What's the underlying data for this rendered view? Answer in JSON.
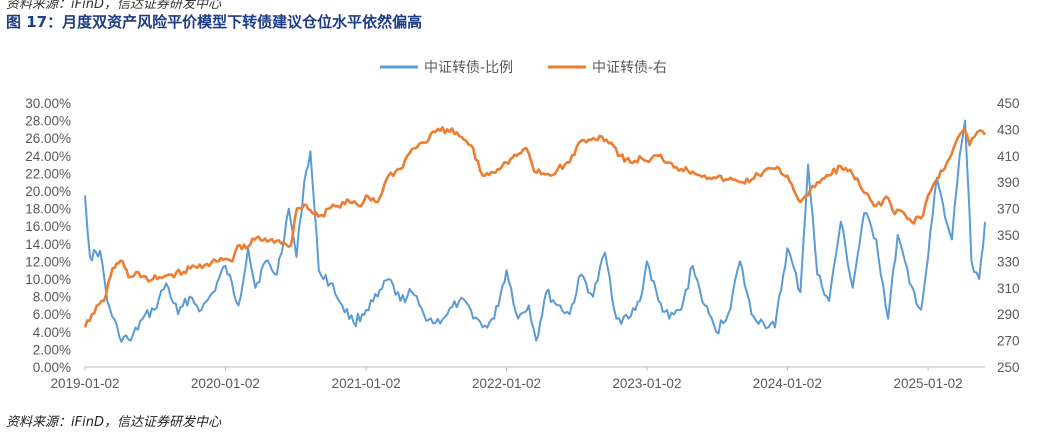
{
  "header": {
    "top_source": "资料来源：iFinD，信达证券研发中心",
    "title": "图 17：月度双资产风险平价模型下转债建议仓位水平依然偏高"
  },
  "footer": {
    "source": "资料来源：iFinD，信达证券研发中心"
  },
  "colors": {
    "ratio": "#5b9bd5",
    "index": "#ed7d31",
    "axis": "#bfbfbf",
    "text": "#595959"
  },
  "chart_data": {
    "type": "line",
    "title": "",
    "legend_position": "top-center",
    "grid": false,
    "x_ticks": [
      "2019-01-02",
      "2020-01-02",
      "2021-01-02",
      "2022-01-02",
      "2023-01-02",
      "2024-01-02",
      "2025-01-02"
    ],
    "x_range": [
      "2019-01-02",
      "2025-05-30"
    ],
    "y_left": {
      "ticks": [
        "0.00%",
        "2.00%",
        "4.00%",
        "6.00%",
        "8.00%",
        "10.00%",
        "12.00%",
        "14.00%",
        "16.00%",
        "18.00%",
        "20.00%",
        "22.00%",
        "24.00%",
        "26.00%",
        "28.00%",
        "30.00%"
      ],
      "range": [
        0,
        30
      ]
    },
    "y_right": {
      "ticks": [
        "250",
        "270",
        "290",
        "310",
        "330",
        "350",
        "370",
        "390",
        "410",
        "430",
        "450"
      ],
      "range": [
        250,
        450
      ]
    },
    "series": [
      {
        "name": "中证转债-比例",
        "axis": "left",
        "unit": "%",
        "x": [
          "2019-01-02",
          "2019-01-15",
          "2019-02-10",
          "2019-03-01",
          "2019-04-01",
          "2019-05-01",
          "2019-06-01",
          "2019-07-01",
          "2019-08-01",
          "2019-09-01",
          "2019-10-01",
          "2019-11-01",
          "2019-12-01",
          "2020-01-02",
          "2020-02-05",
          "2020-03-01",
          "2020-03-20",
          "2020-04-15",
          "2020-05-15",
          "2020-06-15",
          "2020-07-05",
          "2020-07-25",
          "2020-08-10",
          "2020-09-01",
          "2020-10-01",
          "2020-11-01",
          "2020-12-01",
          "2021-01-02",
          "2021-02-01",
          "2021-03-01",
          "2021-04-01",
          "2021-05-01",
          "2021-06-01",
          "2021-07-01",
          "2021-08-01",
          "2021-09-01",
          "2021-10-01",
          "2021-11-01",
          "2021-12-01",
          "2022-01-02",
          "2022-02-01",
          "2022-03-01",
          "2022-03-20",
          "2022-04-15",
          "2022-05-15",
          "2022-06-15",
          "2022-07-15",
          "2022-08-15",
          "2022-09-15",
          "2022-10-15",
          "2022-11-15",
          "2022-12-15",
          "2023-01-02",
          "2023-02-01",
          "2023-03-01",
          "2023-04-01",
          "2023-05-01",
          "2023-06-01",
          "2023-07-01",
          "2023-08-01",
          "2023-09-01",
          "2023-10-01",
          "2023-11-01",
          "2023-12-01",
          "2024-01-02",
          "2024-02-05",
          "2024-02-25",
          "2024-03-20",
          "2024-04-20",
          "2024-05-20",
          "2024-06-20",
          "2024-07-20",
          "2024-08-20",
          "2024-09-20",
          "2024-10-15",
          "2024-11-15",
          "2024-12-15",
          "2025-01-02",
          "2025-01-25",
          "2025-02-15",
          "2025-03-05",
          "2025-03-25",
          "2025-04-08",
          "2025-04-25",
          "2025-05-15",
          "2025-05-30"
        ],
        "values": [
          19.5,
          12.5,
          13.2,
          7.5,
          3.5,
          3.0,
          5.5,
          6.5,
          9.5,
          6.0,
          8.0,
          6.5,
          8.5,
          11.5,
          7.0,
          13.5,
          9.0,
          12.0,
          10.5,
          18.0,
          12.5,
          21.0,
          24.5,
          11.0,
          9.5,
          7.0,
          5.0,
          6.5,
          8.0,
          10.0,
          7.5,
          8.5,
          6.0,
          5.0,
          6.0,
          7.5,
          6.5,
          4.5,
          5.5,
          11.0,
          5.5,
          7.0,
          3.0,
          8.5,
          7.0,
          6.0,
          10.5,
          8.0,
          13.0,
          5.5,
          5.5,
          7.5,
          12.0,
          7.5,
          5.5,
          6.5,
          11.5,
          7.0,
          4.0,
          6.0,
          12.0,
          6.0,
          5.0,
          4.5,
          13.5,
          8.5,
          23.0,
          10.5,
          7.5,
          16.5,
          9.0,
          17.5,
          14.5,
          5.5,
          15.0,
          9.5,
          6.5,
          12.5,
          21.5,
          17.0,
          14.5,
          24.0,
          28.0,
          12.0,
          10.0,
          16.5
        ]
      },
      {
        "name": "中证转债-右",
        "axis": "right",
        "x": [
          "2019-01-02",
          "2019-01-20",
          "2019-02-20",
          "2019-03-15",
          "2019-04-10",
          "2019-04-25",
          "2019-05-15",
          "2019-06-15",
          "2019-07-15",
          "2019-08-15",
          "2019-09-15",
          "2019-10-15",
          "2019-11-15",
          "2019-12-15",
          "2020-01-02",
          "2020-01-20",
          "2020-02-03",
          "2020-02-25",
          "2020-03-23",
          "2020-04-20",
          "2020-05-20",
          "2020-06-20",
          "2020-07-06",
          "2020-07-25",
          "2020-08-20",
          "2020-09-10",
          "2020-09-25",
          "2020-10-20",
          "2020-11-20",
          "2020-12-20",
          "2021-01-02",
          "2021-02-01",
          "2021-03-01",
          "2021-04-01",
          "2021-05-01",
          "2021-06-01",
          "2021-07-01",
          "2021-08-01",
          "2021-09-01",
          "2021-10-01",
          "2021-11-01",
          "2021-12-10",
          "2022-01-02",
          "2022-01-28",
          "2022-02-15",
          "2022-03-01",
          "2022-03-15",
          "2022-04-26",
          "2022-05-15",
          "2022-06-15",
          "2022-07-10",
          "2022-08-10",
          "2022-09-01",
          "2022-10-01",
          "2022-10-25",
          "2022-11-20",
          "2022-12-20",
          "2023-01-02",
          "2023-02-01",
          "2023-03-01",
          "2023-04-01",
          "2023-05-01",
          "2023-06-01",
          "2023-07-01",
          "2023-08-01",
          "2023-09-01",
          "2023-10-01",
          "2023-11-01",
          "2023-12-01",
          "2024-01-02",
          "2024-02-05",
          "2024-02-25",
          "2024-03-20",
          "2024-04-20",
          "2024-05-20",
          "2024-06-20",
          "2024-07-20",
          "2024-08-15",
          "2024-09-20",
          "2024-10-08",
          "2024-10-25",
          "2024-11-20",
          "2024-12-20",
          "2025-01-02",
          "2025-01-25",
          "2025-02-20",
          "2025-03-15",
          "2025-04-07",
          "2025-04-20",
          "2025-05-10",
          "2025-05-30"
        ],
        "values": [
          280,
          290,
          300,
          325,
          330,
          318,
          322,
          315,
          318,
          320,
          322,
          326,
          328,
          330,
          332,
          330,
          342,
          340,
          348,
          345,
          346,
          342,
          370,
          373,
          366,
          365,
          370,
          372,
          375,
          372,
          380,
          375,
          395,
          400,
          415,
          420,
          428,
          430,
          425,
          418,
          395,
          400,
          405,
          410,
          415,
          412,
          398,
          395,
          400,
          405,
          420,
          422,
          425,
          420,
          410,
          405,
          408,
          406,
          410,
          405,
          400,
          398,
          395,
          393,
          392,
          390,
          392,
          398,
          400,
          395,
          375,
          380,
          390,
          395,
          402,
          396,
          382,
          372,
          378,
          366,
          368,
          360,
          365,
          380,
          392,
          405,
          420,
          430,
          418,
          428,
          426
        ]
      }
    ]
  }
}
